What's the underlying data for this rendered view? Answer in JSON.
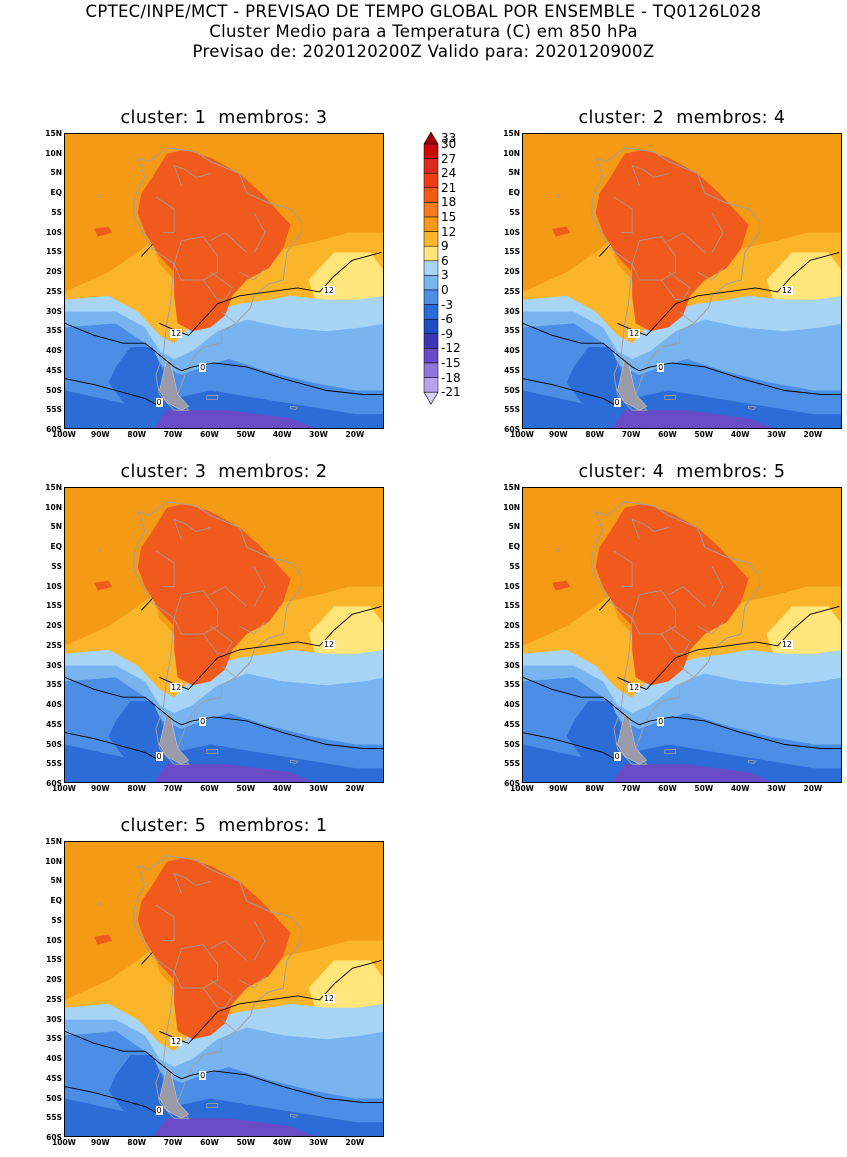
{
  "header": {
    "line1": "CPTEC/INPE/MCT - PREVISAO DE TEMPO GLOBAL POR ENSEMBLE - TQ0126L028",
    "line2": "Cluster Medio para a Temperatura (C) em 850 hPa",
    "line3": "Previsao de: 2020120200Z   Valido para: 2020120900Z"
  },
  "axes": {
    "lat_labels": [
      "15N",
      "10N",
      "5N",
      "EQ",
      "5S",
      "10S",
      "15S",
      "20S",
      "25S",
      "30S",
      "35S",
      "40S",
      "45S",
      "50S",
      "55S",
      "60S"
    ],
    "lon_labels": [
      "100W",
      "90W",
      "80W",
      "70W",
      "60W",
      "50W",
      "40W",
      "30W",
      "20W"
    ],
    "lat_range": [
      -60,
      15
    ],
    "lon_range": [
      -100,
      -12
    ]
  },
  "legend": {
    "labels": [
      "33",
      "30",
      "27",
      "24",
      "21",
      "18",
      "15",
      "12",
      "9",
      "6",
      "3",
      "0",
      "-3",
      "-6",
      "-9",
      "-12",
      "-15",
      "-18",
      "-21"
    ],
    "colors": [
      "#a50000",
      "#c80a0a",
      "#dc2a1e",
      "#f03c14",
      "#f55a14",
      "#f77a1e",
      "#f59a14",
      "#fbb52a",
      "#ffe57a",
      "#a8d4f5",
      "#78b4f0",
      "#4c8ee6",
      "#2c6cd6",
      "#1e4ec4",
      "#4036b4",
      "#6a4cc8",
      "#8c78dc",
      "#b4a4ec",
      "#d8d0f8"
    ]
  },
  "colors": {
    "warm_21": "#f05a1c",
    "mid_18": "#f59a14",
    "mild_15": "#fbb52a",
    "cool_9": "#ffe57a",
    "light_blue": "#a8d4f5",
    "blue_3": "#78b4f0",
    "blue_0": "#4c8ee6",
    "blue_m3": "#2c6cd6",
    "blue_m6": "#1e4ec4",
    "purple": "#6a4cc8",
    "coast": "#a0a0a0"
  },
  "panels": [
    {
      "title": "cluster: 1  membros: 3",
      "labels": {
        "l12a": "12",
        "l12b": "12",
        "l0a": "0",
        "l0b": "0"
      }
    },
    {
      "title": "cluster: 2  membros: 4",
      "labels": {
        "l12a": "12",
        "l12b": "12",
        "l0a": "0",
        "l0b": "0"
      }
    },
    {
      "title": "cluster: 3  membros: 2",
      "labels": {
        "l12a": "12",
        "l12b": "12",
        "l0a": "0",
        "l0b": "0"
      }
    },
    {
      "title": "cluster: 4  membros: 5",
      "labels": {
        "l12a": "12",
        "l12b": "12",
        "l0a": "0",
        "l0b": "0"
      }
    },
    {
      "title": "cluster: 5  membros: 1",
      "labels": {
        "l12a": "12",
        "l12b": "12",
        "l0a": "0",
        "l0b": "0"
      }
    }
  ]
}
